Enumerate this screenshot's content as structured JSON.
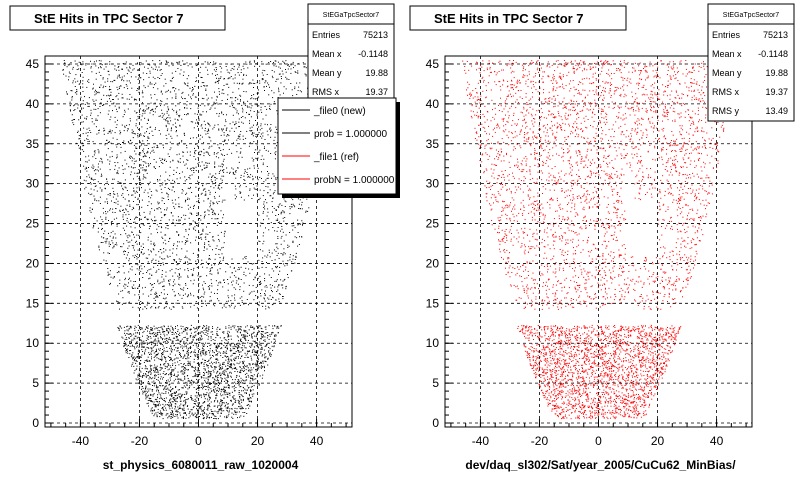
{
  "chart_data": [
    {
      "type": "scatter",
      "title": "StE Hits in TPC Sector 7",
      "xlabel": "st_physics_6080011_raw_1020004",
      "ylabel": "",
      "xlim": [
        -52,
        52
      ],
      "ylim": [
        -0.5,
        46
      ],
      "x_ticks": [
        -40,
        -20,
        0,
        20,
        40
      ],
      "y_ticks": [
        0,
        5,
        10,
        15,
        20,
        25,
        30,
        35,
        40,
        45
      ],
      "grid": true,
      "marker_color": "#000000",
      "stats": {
        "name": "StEGaTpcSector7",
        "rows": [
          {
            "label": "Entries",
            "value": "75213"
          },
          {
            "label": "Mean x",
            "value": "-0.1148"
          },
          {
            "label": "Mean y",
            "value": "19.88"
          },
          {
            "label": "RMS x",
            "value": "19.37"
          }
        ]
      },
      "legend": {
        "position": "top-right",
        "entries": [
          {
            "label": "_file0 (new)",
            "color": "#000000"
          },
          {
            "label": "prob = 1.000000",
            "color": "#000000"
          },
          {
            "label": "_file1 (ref)",
            "color": "#ff0000"
          },
          {
            "label": "probN = 1.000000",
            "color": "#ff0000"
          }
        ]
      }
    },
    {
      "type": "scatter",
      "title": "StE Hits in TPC Sector 7",
      "xlabel": "dev/daq_sl302/Sat/year_2005/CuCu62_MinBias/",
      "ylabel": "",
      "xlim": [
        -52,
        52
      ],
      "ylim": [
        -0.5,
        46
      ],
      "x_ticks": [
        -40,
        -20,
        0,
        20,
        40
      ],
      "y_ticks": [
        0,
        5,
        10,
        15,
        20,
        25,
        30,
        35,
        40,
        45
      ],
      "grid": true,
      "marker_color": "#ff0000",
      "stats": {
        "name": "StEGaTpcSector7",
        "rows": [
          {
            "label": "Entries",
            "value": "75213"
          },
          {
            "label": "Mean x",
            "value": "-0.1148"
          },
          {
            "label": "Mean y",
            "value": "19.88"
          },
          {
            "label": "RMS x",
            "value": "19.37"
          },
          {
            "label": "RMS y",
            "value": "13.49"
          }
        ]
      }
    }
  ]
}
